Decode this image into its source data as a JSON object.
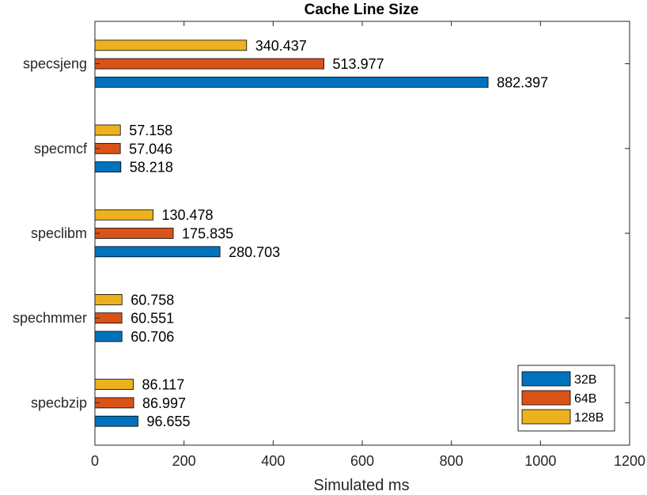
{
  "chart_data": {
    "type": "bar",
    "orientation": "horizontal",
    "title": "Cache Line Size",
    "xlabel": "Simulated ms",
    "ylabel": "",
    "xlim": [
      0,
      1200
    ],
    "xticks": [
      0,
      200,
      400,
      600,
      800,
      1000,
      1200
    ],
    "categories": [
      "specsjeng",
      "specmcf",
      "speclibm",
      "spechmmer",
      "specbzip"
    ],
    "series": [
      {
        "name": "32B",
        "color": "#0072BD",
        "values": [
          882.397,
          58.218,
          280.703,
          60.706,
          96.655
        ],
        "labels": [
          "882.397",
          "58.218",
          "280.703",
          "60.706",
          "96.655"
        ]
      },
      {
        "name": "64B",
        "color": "#D95319",
        "values": [
          513.977,
          57.046,
          175.835,
          60.551,
          86.997
        ],
        "labels": [
          "513.977",
          "57.046",
          "175.835",
          "60.551",
          "86.997"
        ]
      },
      {
        "name": "128B",
        "color": "#EDB120",
        "values": [
          340.437,
          57.158,
          130.478,
          60.758,
          86.117
        ],
        "labels": [
          "340.437",
          "57.158",
          "130.478",
          "60.758",
          "86.117"
        ]
      }
    ],
    "grid": false,
    "legend_position": "bottom-right"
  }
}
